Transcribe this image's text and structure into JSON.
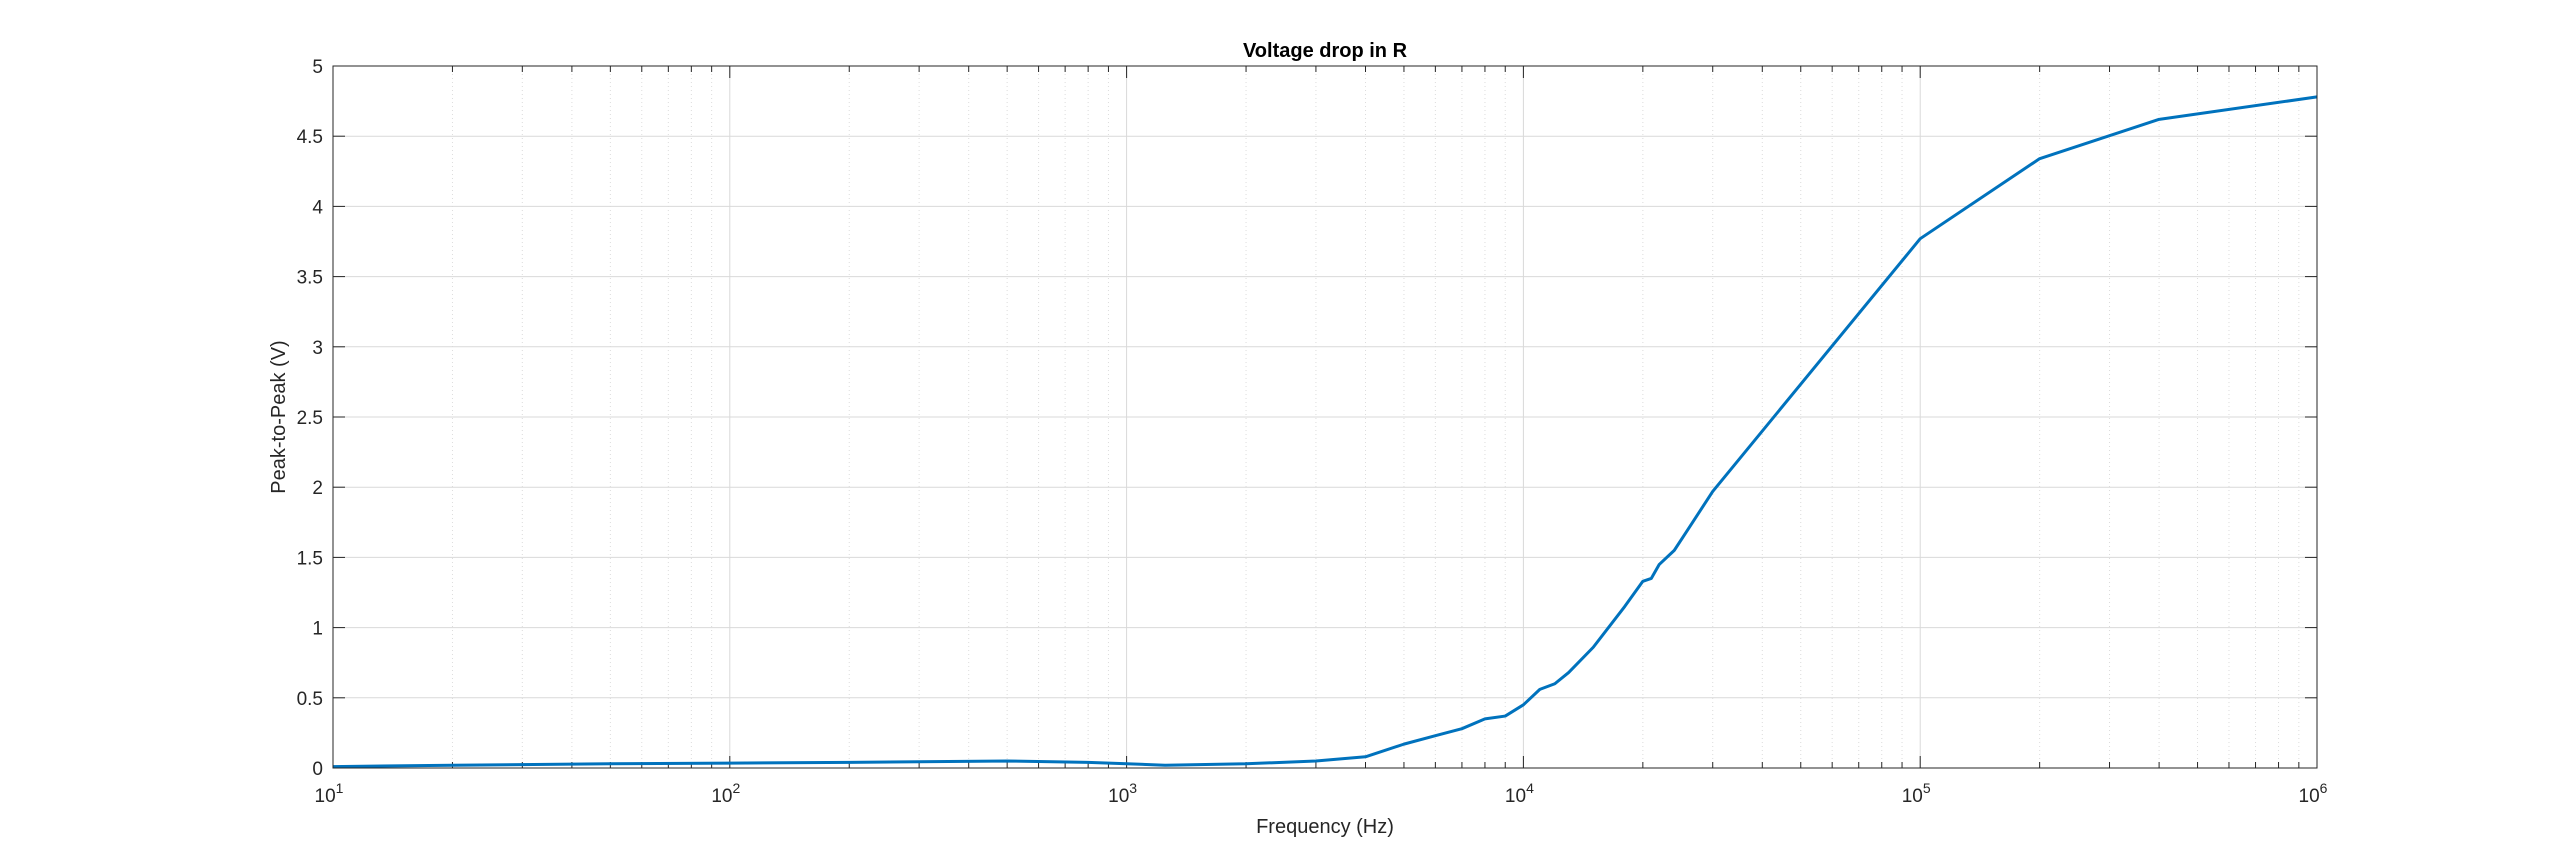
{
  "chart_data": {
    "type": "line",
    "title": "Voltage drop in R",
    "xlabel": "Frequency (Hz)",
    "ylabel": "Peak-to-Peak (V)",
    "x_scale": "log",
    "xlim": [
      10,
      1000000
    ],
    "ylim": [
      0,
      5
    ],
    "grid": true,
    "minor_grid": true,
    "x_ticks": [
      {
        "base": "10",
        "exp": "1"
      },
      {
        "base": "10",
        "exp": "2"
      },
      {
        "base": "10",
        "exp": "3"
      },
      {
        "base": "10",
        "exp": "4"
      },
      {
        "base": "10",
        "exp": "5"
      },
      {
        "base": "10",
        "exp": "6"
      }
    ],
    "y_ticks": [
      "0",
      "0.5",
      "1",
      "1.5",
      "2",
      "2.5",
      "3",
      "3.5",
      "4",
      "4.5",
      "5"
    ],
    "series": [
      {
        "color": "#0072BD",
        "x": [
          10,
          20,
          50,
          100,
          200,
          500,
          800,
          1000,
          1250,
          2000,
          3000,
          4000,
          5000,
          6000,
          7000,
          8000,
          9000,
          10000,
          11000,
          12000,
          13000,
          15000,
          18000,
          20000,
          21000,
          22000,
          24000,
          26000,
          30000,
          100000,
          200000,
          400000,
          1000000
        ],
        "y": [
          0.01,
          0.02,
          0.03,
          0.035,
          0.04,
          0.05,
          0.04,
          0.03,
          0.02,
          0.03,
          0.05,
          0.08,
          0.17,
          0.23,
          0.28,
          0.35,
          0.37,
          0.45,
          0.56,
          0.6,
          0.68,
          0.86,
          1.15,
          1.33,
          1.35,
          1.45,
          1.55,
          1.7,
          1.97,
          3.77,
          4.34,
          4.62,
          4.78
        ]
      }
    ]
  }
}
